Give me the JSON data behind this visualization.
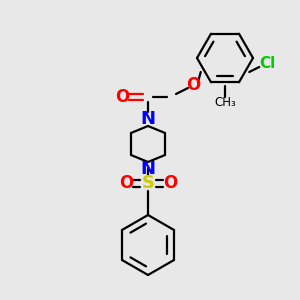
{
  "background_color": "#e8e8e8",
  "bond_color": "#000000",
  "atom_colors": {
    "O": "#ff0000",
    "N": "#0000ff",
    "S": "#cccc00",
    "Cl": "#00cc00",
    "C": "#000000"
  },
  "line_width": 1.6,
  "figsize": [
    3.0,
    3.0
  ],
  "dpi": 100,
  "xlim": [
    0,
    300
  ],
  "ylim": [
    0,
    300
  ]
}
